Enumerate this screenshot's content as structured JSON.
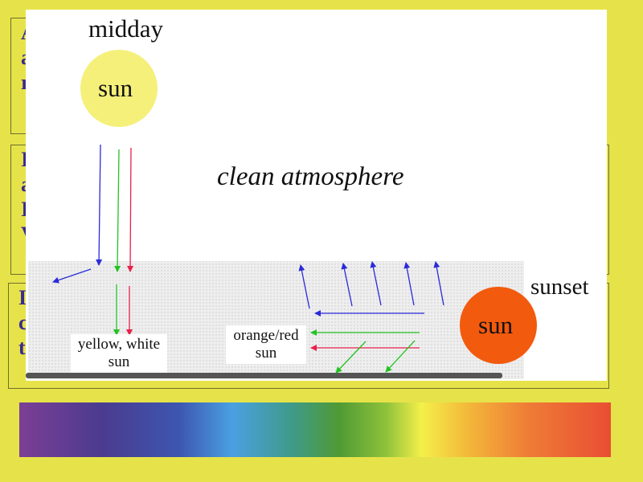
{
  "labels": {
    "midday": "midday",
    "sun_top": "sun",
    "clean_atmosphere": "clean atmosphere",
    "sunset": "sunset",
    "sun_sunset": "sun",
    "yellow_white_sun_line1": "yellow, white",
    "yellow_white_sun_line2": "sun",
    "orange_red_sun_line1": "orange/red",
    "orange_red_sun_line2": "sun"
  },
  "slide_fragments": {
    "box1": [
      "A",
      "a",
      "r"
    ],
    "box2": [
      "I",
      "a",
      "I",
      "V"
    ],
    "box3": [
      "I",
      "c",
      "t"
    ]
  },
  "colors": {
    "background": "#e6e34a",
    "text_fragments": "#3b2a8e",
    "midday_sun": "#f5f07a",
    "sunset_sun": "#f25a0e",
    "blue_ray": "#2a2adb",
    "green_ray": "#22c322",
    "red_ray": "#e8204a",
    "atmosphere_haze": "#e9e9e9"
  },
  "spectrum": {
    "colors": [
      "violet",
      "blue",
      "green",
      "yellow",
      "orange",
      "red"
    ]
  }
}
